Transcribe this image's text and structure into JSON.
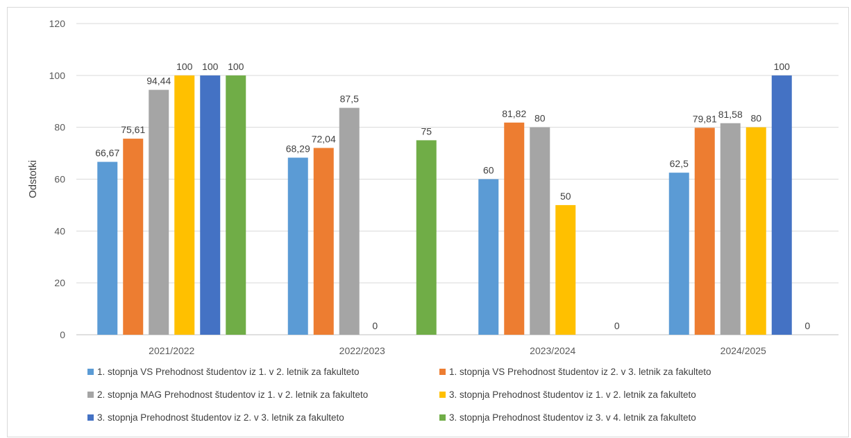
{
  "chart_data": {
    "type": "bar",
    "title": "",
    "xlabel": "",
    "ylabel": "Odstotki",
    "ylim": [
      0,
      120
    ],
    "yticks": [
      "0",
      "20",
      "40",
      "60",
      "80",
      "100",
      "120"
    ],
    "grid": true,
    "legend_position": "bottom",
    "categories": [
      "2021/2022",
      "2022/2023",
      "2023/2024",
      "2024/2025"
    ],
    "series": [
      {
        "name": "1. stopnja VS  Prehodnost študentov iz 1. v 2. letnik za fakulteto",
        "color": "#5b9bd5",
        "values": [
          66.67,
          68.29,
          60,
          62.5
        ],
        "labels": [
          "66,67",
          "68,29",
          "60",
          "62,5"
        ]
      },
      {
        "name": "1. stopnja VS  Prehodnost študentov iz 2. v 3. letnik za fakulteto",
        "color": "#ed7d31",
        "values": [
          75.61,
          72.04,
          81.82,
          79.81
        ],
        "labels": [
          "75,61",
          "72,04",
          "81,82",
          "79,81"
        ]
      },
      {
        "name": "2. stopnja MAG  Prehodnost študentov iz 1. v 2. letnik za fakulteto",
        "color": "#a5a5a5",
        "values": [
          94.44,
          87.5,
          80,
          81.58
        ],
        "labels": [
          "94,44",
          "87,5",
          "80",
          "81,58"
        ]
      },
      {
        "name": "3. stopnja  Prehodnost študentov iz 1. v 2. letnik za fakulteto",
        "color": "#ffc000",
        "values": [
          100,
          0,
          50,
          80
        ],
        "labels": [
          "100",
          "0",
          "50",
          "80"
        ]
      },
      {
        "name": "3. stopnja  Prehodnost študentov iz 2. v 3. letnik za fakulteto",
        "color": "#4472c4",
        "values": [
          100,
          null,
          null,
          100
        ],
        "labels": [
          "100",
          "",
          "",
          "100"
        ]
      },
      {
        "name": "3. stopnja  Prehodnost študentov iz 3. v 4. letnik za fakulteto",
        "color": "#70ad47",
        "values": [
          100,
          75,
          0,
          0
        ],
        "labels": [
          "100",
          "75",
          "0",
          "0"
        ]
      }
    ]
  }
}
